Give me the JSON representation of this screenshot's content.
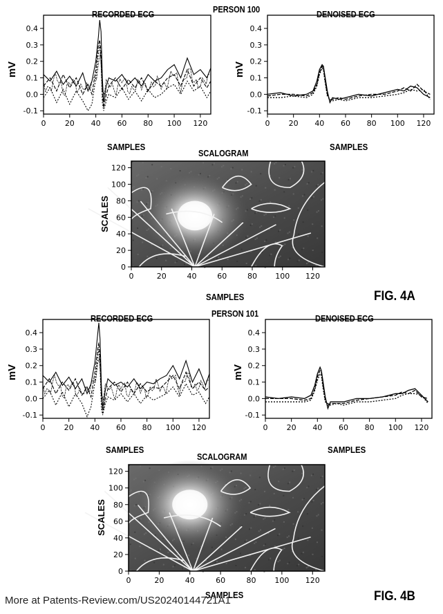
{
  "figures": [
    {
      "person_label": "PERSON 100",
      "fig_label": "FIG. 4A",
      "recorded": {
        "title": "RECORDED ECG",
        "xlabel": "SAMPLES",
        "ylabel": "mV"
      },
      "denoised": {
        "title": "DENOISED ECG",
        "xlabel": "SAMPLES",
        "ylabel": "mV"
      },
      "scalogram": {
        "title": "SCALOGRAM",
        "xlabel": "SAMPLES",
        "ylabel": "SCALES"
      }
    },
    {
      "person_label": "PERSON 101",
      "fig_label": "FIG. 4B",
      "recorded": {
        "title": "RECORDED ECG",
        "xlabel": "SAMPLES",
        "ylabel": "mV"
      },
      "denoised": {
        "title": "DENOISED ECG",
        "xlabel": "SAMPLES",
        "ylabel": "mV"
      },
      "scalogram": {
        "title": "SCALOGRAM",
        "xlabel": "SAMPLES",
        "ylabel": "SCALES"
      }
    }
  ],
  "footer": "More at Patents-Review.com/US20240144721A1",
  "chart_data": [
    {
      "type": "line",
      "title": "RECORDED ECG",
      "xlabel": "SAMPLES",
      "ylabel": "mV",
      "xlim": [
        0,
        128
      ],
      "ylim": [
        -0.12,
        0.48
      ],
      "xticks": [
        "0",
        "20",
        "40",
        "60",
        "80",
        "100",
        "120"
      ],
      "yticks": [
        "-0.1",
        "0.0",
        "0.1",
        "0.2",
        "0.3",
        "0.4"
      ],
      "x": [
        0,
        5,
        10,
        15,
        20,
        25,
        30,
        34,
        37,
        40,
        42,
        43,
        44,
        45,
        46,
        48,
        50,
        55,
        60,
        65,
        70,
        75,
        80,
        85,
        90,
        95,
        100,
        105,
        110,
        115,
        120,
        125,
        128
      ],
      "series": [
        {
          "values": [
            0.12,
            0.08,
            0.14,
            0.06,
            0.11,
            0.05,
            0.13,
            0.02,
            0.08,
            0.2,
            0.35,
            0.45,
            0.38,
            0.1,
            -0.05,
            0.05,
            0.1,
            0.08,
            0.12,
            0.06,
            0.1,
            0.05,
            0.12,
            0.08,
            0.1,
            0.15,
            0.18,
            0.1,
            0.22,
            0.12,
            0.15,
            0.1,
            0.16
          ]
        },
        {
          "values": [
            0.05,
            0.1,
            0.02,
            0.12,
            0.04,
            0.1,
            0.0,
            0.06,
            0.0,
            0.15,
            0.3,
            0.33,
            0.25,
            0.0,
            -0.08,
            0.0,
            0.05,
            0.1,
            0.03,
            0.09,
            0.04,
            0.1,
            0.02,
            0.08,
            0.05,
            0.1,
            0.12,
            0.05,
            0.15,
            0.05,
            0.1,
            0.04,
            0.08
          ]
        },
        {
          "values": [
            -0.02,
            0.04,
            -0.05,
            0.03,
            -0.06,
            0.02,
            -0.04,
            -0.1,
            -0.06,
            0.1,
            0.25,
            0.3,
            0.2,
            -0.05,
            -0.1,
            -0.04,
            0.0,
            -0.02,
            0.04,
            -0.03,
            0.02,
            -0.04,
            0.03,
            -0.02,
            0.0,
            0.04,
            0.06,
            0.0,
            0.08,
            0.02,
            0.05,
            -0.02,
            0.02
          ]
        }
      ]
    },
    {
      "type": "line",
      "title": "DENOISED ECG",
      "xlabel": "SAMPLES",
      "ylabel": "mV",
      "xlim": [
        0,
        128
      ],
      "ylim": [
        -0.12,
        0.48
      ],
      "xticks": [
        "0",
        "20",
        "40",
        "60",
        "80",
        "100",
        "120"
      ],
      "yticks": [
        "-0.1",
        "0.0",
        "0.1",
        "0.2",
        "0.3",
        "0.4"
      ],
      "x": [
        0,
        10,
        20,
        30,
        35,
        38,
        40,
        42,
        43,
        44,
        46,
        48,
        50,
        55,
        60,
        70,
        80,
        90,
        100,
        105,
        110,
        115,
        120,
        125
      ],
      "series": [
        {
          "values": [
            0.0,
            0.01,
            -0.01,
            0.0,
            0.02,
            0.08,
            0.15,
            0.18,
            0.17,
            0.12,
            0.02,
            -0.05,
            -0.02,
            -0.03,
            -0.02,
            0.0,
            -0.01,
            0.01,
            0.03,
            0.02,
            0.05,
            0.04,
            0.0,
            -0.02
          ]
        },
        {
          "values": [
            -0.01,
            0.0,
            0.0,
            -0.01,
            0.01,
            0.06,
            0.13,
            0.17,
            0.16,
            0.1,
            0.0,
            -0.04,
            -0.03,
            -0.02,
            -0.03,
            -0.01,
            0.0,
            0.0,
            0.02,
            0.04,
            0.02,
            0.06,
            0.02,
            0.0
          ]
        },
        {
          "values": [
            -0.02,
            -0.02,
            -0.01,
            -0.02,
            0.0,
            0.05,
            0.12,
            0.16,
            0.15,
            0.09,
            -0.01,
            -0.03,
            -0.04,
            -0.03,
            -0.04,
            -0.02,
            -0.02,
            -0.01,
            0.0,
            0.01,
            0.03,
            0.02,
            0.03,
            -0.03
          ]
        }
      ]
    },
    {
      "type": "heatmap",
      "title": "SCALOGRAM",
      "xlabel": "SAMPLES",
      "ylabel": "SCALES",
      "xlim": [
        0,
        128
      ],
      "ylim": [
        0,
        128
      ],
      "xticks": [
        "0",
        "20",
        "40",
        "60",
        "80",
        "100",
        "120"
      ],
      "yticks": [
        "0",
        "20",
        "40",
        "60",
        "80",
        "100",
        "120"
      ],
      "peak": {
        "x": 42,
        "y": 62
      }
    },
    {
      "type": "line",
      "title": "RECORDED ECG",
      "xlabel": "SAMPLES",
      "ylabel": "mV",
      "xlim": [
        0,
        128
      ],
      "ylim": [
        -0.12,
        0.48
      ],
      "xticks": [
        "0",
        "20",
        "40",
        "60",
        "80",
        "100",
        "120"
      ],
      "yticks": [
        "-0.1",
        "0.0",
        "0.1",
        "0.2",
        "0.3",
        "0.4"
      ],
      "x": [
        0,
        5,
        10,
        15,
        20,
        25,
        30,
        34,
        37,
        40,
        42,
        43,
        44,
        45,
        46,
        48,
        50,
        55,
        60,
        65,
        70,
        75,
        80,
        85,
        90,
        95,
        100,
        105,
        110,
        115,
        120,
        125,
        128
      ],
      "series": [
        {
          "values": [
            0.14,
            0.1,
            0.16,
            0.08,
            0.13,
            0.06,
            0.12,
            0.03,
            0.09,
            0.22,
            0.38,
            0.46,
            0.36,
            0.08,
            -0.06,
            0.05,
            0.12,
            0.08,
            0.1,
            0.07,
            0.12,
            0.06,
            0.1,
            0.09,
            0.12,
            0.14,
            0.2,
            0.12,
            0.23,
            0.1,
            0.18,
            0.08,
            0.15
          ]
        },
        {
          "values": [
            0.06,
            0.12,
            0.03,
            0.1,
            0.05,
            0.12,
            0.02,
            0.07,
            0.01,
            0.16,
            0.29,
            0.34,
            0.24,
            0.02,
            -0.09,
            0.0,
            0.06,
            0.1,
            0.04,
            0.1,
            0.03,
            0.09,
            0.04,
            0.07,
            0.06,
            0.1,
            0.14,
            0.06,
            0.16,
            0.06,
            0.1,
            0.05,
            0.07
          ]
        },
        {
          "values": [
            0.0,
            0.05,
            -0.04,
            0.04,
            -0.05,
            0.03,
            -0.03,
            -0.11,
            -0.05,
            0.1,
            0.24,
            0.3,
            0.19,
            -0.06,
            -0.1,
            -0.03,
            0.01,
            -0.01,
            0.03,
            -0.02,
            0.03,
            -0.03,
            0.02,
            -0.01,
            0.01,
            0.03,
            0.07,
            0.01,
            0.09,
            0.02,
            0.04,
            -0.03,
            0.01
          ]
        }
      ]
    },
    {
      "type": "line",
      "title": "DENOISED ECG",
      "xlabel": "SAMPLES",
      "ylabel": "mV",
      "xlim": [
        0,
        128
      ],
      "ylim": [
        -0.12,
        0.48
      ],
      "xticks": [
        "0",
        "20",
        "40",
        "60",
        "80",
        "100",
        "120"
      ],
      "yticks": [
        "-0.1",
        "0.0",
        "0.1",
        "0.2",
        "0.3",
        "0.4"
      ],
      "x": [
        0,
        10,
        20,
        30,
        35,
        38,
        40,
        42,
        43,
        44,
        46,
        48,
        50,
        55,
        60,
        70,
        80,
        90,
        100,
        105,
        110,
        115,
        120,
        125
      ],
      "series": [
        {
          "values": [
            0.01,
            0.0,
            0.01,
            0.0,
            0.02,
            0.08,
            0.15,
            0.19,
            0.17,
            0.12,
            0.01,
            -0.06,
            -0.02,
            -0.02,
            -0.02,
            0.0,
            0.0,
            0.01,
            0.03,
            0.03,
            0.05,
            0.06,
            0.02,
            -0.02
          ]
        },
        {
          "values": [
            0.0,
            0.0,
            0.0,
            -0.01,
            0.0,
            0.06,
            0.13,
            0.17,
            0.16,
            0.1,
            -0.01,
            -0.04,
            -0.03,
            -0.03,
            -0.03,
            -0.01,
            0.0,
            0.01,
            0.02,
            0.04,
            0.03,
            0.05,
            0.01,
            0.0
          ]
        },
        {
          "values": [
            -0.02,
            -0.02,
            -0.02,
            -0.02,
            -0.01,
            0.05,
            0.11,
            0.15,
            0.14,
            0.08,
            -0.02,
            -0.03,
            -0.04,
            -0.03,
            -0.04,
            -0.02,
            -0.02,
            -0.01,
            0.0,
            0.02,
            0.03,
            0.03,
            0.02,
            -0.03
          ]
        }
      ]
    },
    {
      "type": "heatmap",
      "title": "SCALOGRAM",
      "xlabel": "SAMPLES",
      "ylabel": "SCALES",
      "xlim": [
        0,
        128
      ],
      "ylim": [
        0,
        128
      ],
      "xticks": [
        "0",
        "20",
        "40",
        "60",
        "80",
        "100",
        "120"
      ],
      "yticks": [
        "0",
        "20",
        "40",
        "60",
        "80",
        "100",
        "120"
      ],
      "peak": {
        "x": 40,
        "y": 80
      }
    }
  ]
}
